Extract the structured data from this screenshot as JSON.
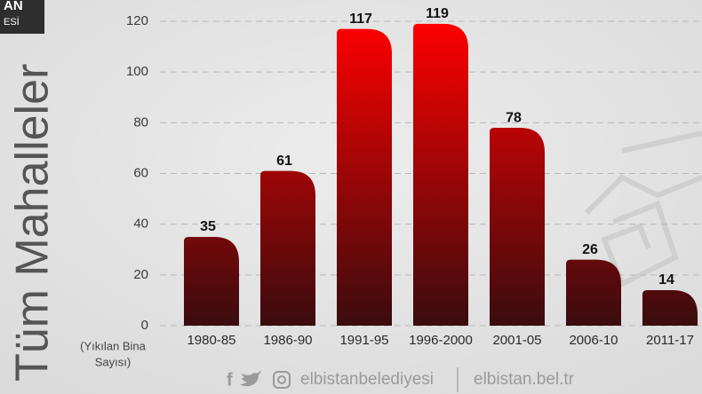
{
  "logo": [
    "AN",
    "ESİ"
  ],
  "side_title": "Tüm Mahalleler",
  "footer": {
    "handle": "elbistanbelediyesi",
    "website": "elbistan.bel.tr"
  },
  "chart_data": {
    "type": "bar",
    "y_label": [
      "(Yıkılan Bina",
      "Sayısı)"
    ],
    "categories": [
      "1980-85",
      "1986-90",
      "1991-95",
      "1996-2000",
      "2001-05",
      "2006-10",
      "2011-17"
    ],
    "values": [
      35,
      61,
      117,
      119,
      78,
      26,
      14
    ],
    "colors": [
      "#ff0000",
      "#3a0c0e"
    ],
    "ylim": [
      0,
      120
    ],
    "yticks": [
      0,
      20,
      40,
      60,
      80,
      100,
      120
    ],
    "grid": true
  }
}
